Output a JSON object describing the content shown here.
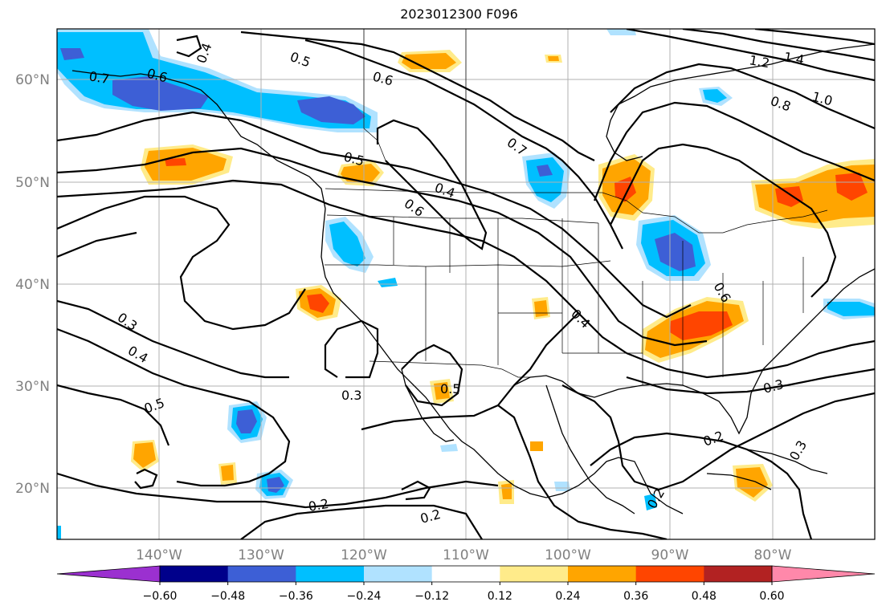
{
  "title": "2023012300 F096",
  "latitude_labels": [
    "60°N",
    "50°N",
    "40°N",
    "30°N",
    "20°N"
  ],
  "longitude_labels": [
    "140°W",
    "130°W",
    "120°W",
    "110°W",
    "100°W",
    "90°W",
    "80°W"
  ],
  "colorbar": {
    "ticks": [
      "−0.60",
      "−0.48",
      "−0.36",
      "−0.24",
      "−0.12",
      "0.12",
      "0.24",
      "0.36",
      "0.48",
      "0.60"
    ],
    "colors": [
      "#9b30d0",
      "#00008b",
      "#3d5fd6",
      "#00bfff",
      "#b0e2ff",
      "#ffffff",
      "#ffeb8a",
      "#ffa500",
      "#ff4500",
      "#b22222",
      "#ff88aa"
    ]
  },
  "contour_labels": {
    "c04a": "0.4",
    "c05a": "0.5",
    "c06a": "0.6",
    "c07a": "0.7",
    "c06b": "0.6",
    "c05b": "0.5",
    "c04b": "0.4",
    "c06c": "0.6",
    "c07b": "0.7",
    "c12": "1.2",
    "c14": "1.4",
    "c10": "1.0",
    "c08": "0.8",
    "c03a": "0.3",
    "c04c": "0.4",
    "c05c": "0.5",
    "c03b": "0.3",
    "c04d": "0.4",
    "c06d": "0.6",
    "c03c": "0.3",
    "c02a": "0.2",
    "c02b": "0.2",
    "c02c": "0.2",
    "c03d": "0.3",
    "c05d": "0.5",
    "c02d": "0.2"
  },
  "chart_data": {
    "type": "contour-map",
    "title": "2023012300 F096",
    "projection": "lat-lon",
    "lon_range": [
      -150,
      -70
    ],
    "lat_range": [
      15,
      65
    ],
    "filled_field_levels": [
      -0.6,
      -0.48,
      -0.36,
      -0.24,
      -0.12,
      0.12,
      0.24,
      0.36,
      0.48,
      0.6
    ],
    "contour_levels": [
      0.2,
      0.3,
      0.4,
      0.5,
      0.6,
      0.7,
      0.8,
      1.0,
      1.2,
      1.4
    ],
    "grid": true
  }
}
